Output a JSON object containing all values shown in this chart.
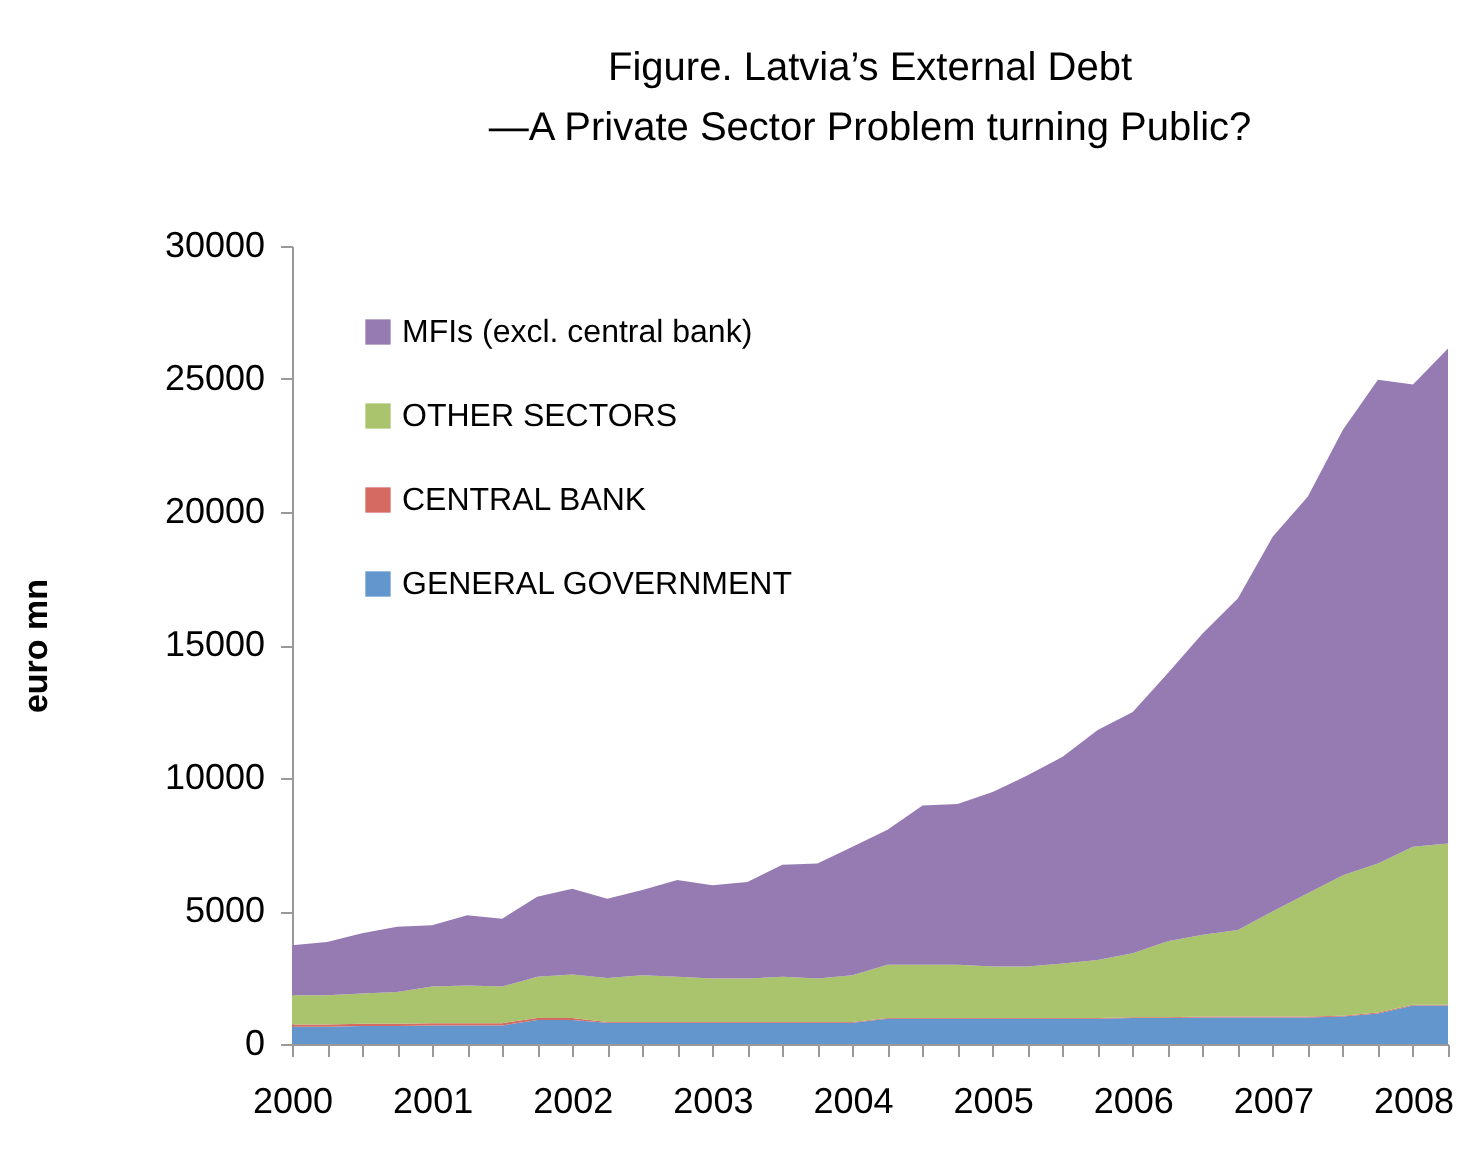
{
  "chart_data": {
    "type": "area",
    "title": "Figure. Latvia’s External Debt",
    "subtitle": "—A Private Sector Problem turning Public?",
    "ylabel": "euro mn",
    "categories": [
      "2000",
      null,
      null,
      null,
      "2001",
      null,
      null,
      null,
      "2002",
      null,
      null,
      null,
      "2003",
      null,
      null,
      null,
      "2004",
      null,
      null,
      null,
      "2005",
      null,
      null,
      null,
      "2006",
      null,
      null,
      null,
      "2007",
      null,
      null,
      null,
      "2008",
      null
    ],
    "stacked": true,
    "series": [
      {
        "name": "GENERAL GOVERNMENT",
        "color": "#6296cc",
        "values": [
          650,
          650,
          680,
          680,
          700,
          700,
          700,
          900,
          900,
          800,
          800,
          800,
          800,
          800,
          800,
          800,
          800,
          950,
          950,
          950,
          950,
          950,
          950,
          950,
          980,
          980,
          1000,
          1000,
          1000,
          1000,
          1030,
          1150,
          1450,
          1450
        ]
      },
      {
        "name": "CENTRAL BANK",
        "color": "#d46a62",
        "values": [
          80,
          80,
          80,
          80,
          80,
          80,
          80,
          80,
          80,
          30,
          30,
          30,
          30,
          30,
          30,
          30,
          30,
          30,
          30,
          30,
          30,
          30,
          30,
          30,
          30,
          30,
          30,
          30,
          30,
          30,
          30,
          30,
          30,
          30
        ]
      },
      {
        "name": "OTHER SECTORS",
        "color": "#a9c46d",
        "values": [
          1100,
          1100,
          1140,
          1195,
          1380,
          1420,
          1380,
          1550,
          1630,
          1650,
          1750,
          1700,
          1630,
          1630,
          1700,
          1630,
          1750,
          2000,
          2000,
          2000,
          1930,
          1930,
          2050,
          2180,
          2400,
          2850,
          3080,
          3260,
          3960,
          4640,
          5280,
          5610,
          5940,
          6060
        ]
      },
      {
        "name": "MFIs (excl. central bank)",
        "color": "#967bb2",
        "values": [
          1880,
          2005,
          2260,
          2455,
          2300,
          2640,
          2550,
          3010,
          3230,
          2980,
          3210,
          3640,
          3510,
          3630,
          4210,
          4330,
          4840,
          5070,
          5990,
          6040,
          6560,
          7190,
          7770,
          8640,
          9070,
          10080,
          11330,
          12460,
          14090,
          14910,
          16750,
          18180,
          17370,
          18610
        ]
      }
    ],
    "ylim": [
      0,
      30000
    ],
    "yticks": [
      0,
      5000,
      10000,
      15000,
      20000,
      25000,
      30000
    ],
    "legend": "top left"
  }
}
